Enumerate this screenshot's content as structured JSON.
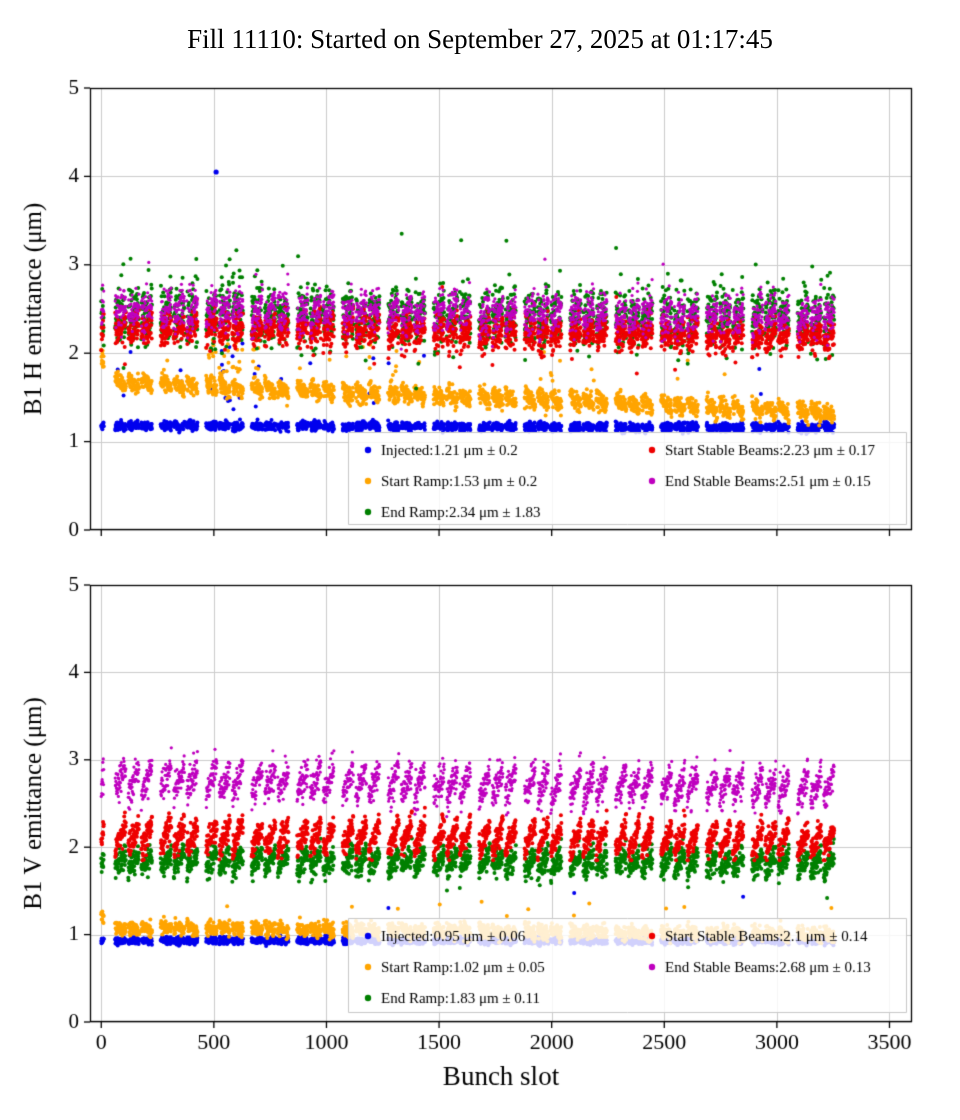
{
  "title": "Fill 11110: Started on September 27, 2025 at 01:17:45",
  "xlabel": "Bunch slot",
  "chart_data": [
    {
      "type": "scatter",
      "ylabel": "B1 H emittance (μm)",
      "xlim": [
        -50,
        3600
      ],
      "ylim": [
        0,
        5
      ],
      "xticks": [
        0,
        500,
        1000,
        1500,
        2000,
        2500,
        3000,
        3500
      ],
      "yticks": [
        0,
        1,
        2,
        3,
        4,
        5
      ],
      "grid": true,
      "legend_columns": [
        [
          0,
          1,
          2
        ],
        [
          3,
          4
        ]
      ],
      "series": [
        {
          "name": "Injected",
          "label": "Injected:1.21 μm ± 0.2",
          "color": "#0000ee",
          "mean": 1.21,
          "std": 0.2,
          "plot": {
            "mean": 1.16,
            "sd": 0.025,
            "trend": 0.02,
            "train_mod": 0.0,
            "out_rate": 0.005,
            "out_mag": 0.9,
            "clamp": [
              1.05,
              2.3
            ],
            "bursts": [
              [
                480,
                700,
                0.09,
                1.0
              ],
              [
                1180,
                1320,
                0.07,
                0.8
              ]
            ]
          },
          "outlier_points": [
            [
              510,
              4.05
            ]
          ]
        },
        {
          "name": "Start Ramp",
          "label": "Start Ramp:1.53 μm ± 0.2",
          "color": "#ffa500",
          "mean": 1.53,
          "std": 0.2,
          "plot": {
            "mean": 1.33,
            "sd": 0.05,
            "trend": 0.35,
            "train_mod": -0.1,
            "head": 0.25,
            "out_rate": 0.01,
            "out_mag": 0.55,
            "clamp": [
              1.15,
              2.15
            ],
            "bursts": [
              [
                440,
                700,
                0.18,
                0.6
              ],
              [
                1180,
                1320,
                0.08,
                0.5
              ]
            ]
          }
        },
        {
          "name": "End Ramp",
          "label": "End Ramp:2.34 μm ± 1.83",
          "color": "#008000",
          "mean": 2.34,
          "std": 1.83,
          "plot": {
            "mean": 2.4,
            "sd": 0.16,
            "trend": 0.05,
            "train_mod": 0.08,
            "out_rate": 0.02,
            "out_mag": 0.55,
            "low_rate": 0.02,
            "low_mag": 0.45,
            "clamp": [
              1.6,
              3.35
            ],
            "bursts": [
              [
                480,
                700,
                0.1,
                0.5
              ]
            ]
          }
        },
        {
          "name": "Start Stable Beams",
          "label": "Start Stable Beams:2.23 μm ± 0.17",
          "color": "#ee0000",
          "mean": 2.23,
          "std": 0.17,
          "plot": {
            "mean": 2.18,
            "sd": 0.09,
            "trend": 0.12,
            "train_mod": 0.12,
            "out_rate": 0.004,
            "out_mag": 0.3,
            "low_rate": 0.006,
            "low_mag": 0.35,
            "clamp": [
              1.7,
              2.75
            ]
          }
        },
        {
          "name": "End Stable Beams",
          "label": "End Stable Beams:2.51 μm ± 0.15",
          "color": "#bf00bf",
          "mean": 2.51,
          "std": 0.15,
          "marker_r": 1.6,
          "plot": {
            "mean": 2.42,
            "sd": 0.11,
            "trend": 0.08,
            "train_mod": 0.18,
            "out_rate": 0.004,
            "out_mag": 0.55,
            "clamp": [
              2.0,
              3.3
            ]
          }
        }
      ]
    },
    {
      "type": "scatter",
      "ylabel": "B1 V emittance (μm)",
      "xlim": [
        -50,
        3600
      ],
      "ylim": [
        0,
        5
      ],
      "xticks": [
        0,
        500,
        1000,
        1500,
        2000,
        2500,
        3000,
        3500
      ],
      "yticks": [
        0,
        1,
        2,
        3,
        4,
        5
      ],
      "grid": true,
      "legend_columns": [
        [
          0,
          1,
          2
        ],
        [
          3,
          4
        ]
      ],
      "series": [
        {
          "name": "Injected",
          "label": "Injected:0.95 μm ± 0.06",
          "color": "#0000ee",
          "mean": 0.95,
          "std": 0.06,
          "plot": {
            "mean": 0.93,
            "sd": 0.02,
            "trend": 0.0,
            "train_mod": 0.0,
            "out_rate": 0.0015,
            "out_mag": 0.8,
            "clamp": [
              0.86,
              1.8
            ]
          }
        },
        {
          "name": "Start Ramp",
          "label": "Start Ramp:1.02 μm ± 0.05",
          "color": "#ffa500",
          "mean": 1.02,
          "std": 0.05,
          "plot": {
            "mean": 1.0,
            "sd": 0.04,
            "trend": 0.08,
            "head": 0.15,
            "train_mod": -0.05,
            "out_rate": 0.008,
            "out_mag": 0.35,
            "clamp": [
              0.9,
              1.5
            ]
          }
        },
        {
          "name": "End Ramp",
          "label": "End Ramp:1.83 μm ± 0.11",
          "color": "#008000",
          "mean": 1.83,
          "std": 0.11,
          "plot": {
            "mean": 1.82,
            "sd": 0.07,
            "trend": 0.03,
            "train_mod": 0.18,
            "low_rate": 0.004,
            "low_mag": 0.35,
            "clamp": [
              1.42,
              2.1
            ]
          }
        },
        {
          "name": "Start Stable Beams",
          "label": "Start Stable Beams:2.1 μm ± 0.14",
          "color": "#ee0000",
          "mean": 2.1,
          "std": 0.14,
          "plot": {
            "mean": 2.08,
            "sd": 0.07,
            "trend": 0.06,
            "train_mod": 0.3,
            "clamp": [
              1.85,
              2.45
            ]
          }
        },
        {
          "name": "End Stable Beams",
          "label": "End Stable Beams:2.68 μm ± 0.13",
          "color": "#bf00bf",
          "mean": 2.68,
          "std": 0.13,
          "marker_r": 1.6,
          "plot": {
            "mean": 2.68,
            "sd": 0.09,
            "trend": 0.1,
            "train_mod": 0.32,
            "out_rate": 0.003,
            "out_mag": 0.3,
            "clamp": [
              2.35,
              3.15
            ]
          }
        }
      ]
    }
  ]
}
